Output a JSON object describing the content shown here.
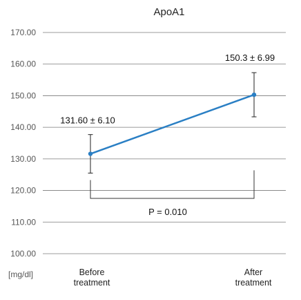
{
  "chart_data": {
    "type": "line",
    "title": "ApoA1",
    "unit_label": "[mg/dl]",
    "categories": [
      "Before\ntreatment",
      "After\ntreatment"
    ],
    "values": [
      131.6,
      150.3
    ],
    "errors": [
      6.1,
      6.99
    ],
    "value_labels": [
      "131.60 ± 6.10",
      "150.3 ± 6.99"
    ],
    "y_ticks": [
      "100.00",
      "110.00",
      "120.00",
      "130.00",
      "140.00",
      "150.00",
      "160.00",
      "170.00"
    ],
    "ylim": [
      100,
      170
    ],
    "grid": true,
    "significance": "P = 0.010",
    "colors": {
      "line": "#2a7fc4",
      "marker": "#2a7fc4",
      "grid": "#7a7a7a",
      "text": "#222222"
    }
  }
}
